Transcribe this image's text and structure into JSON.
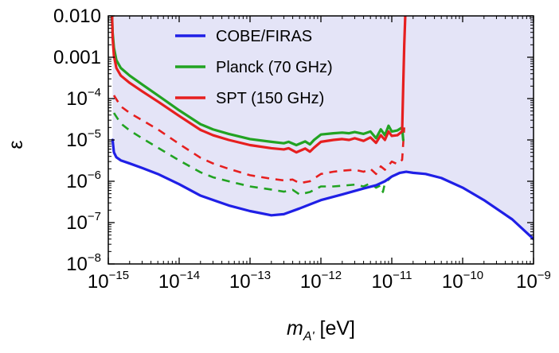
{
  "chart_data": {
    "type": "line",
    "title": "",
    "xlabel": {
      "symbol": "m",
      "subscript": "A'",
      "unit": "[eV]"
    },
    "ylabel": "ε",
    "x_scale": "log",
    "y_scale": "log",
    "xlim": [
      1e-15,
      1e-09
    ],
    "ylim": [
      1e-08,
      0.01
    ],
    "x_ticks": [
      {
        "base": "10",
        "exp": "−15",
        "value": 1e-15
      },
      {
        "base": "10",
        "exp": "−14",
        "value": 1e-14
      },
      {
        "base": "10",
        "exp": "−13",
        "value": 1e-13
      },
      {
        "base": "10",
        "exp": "−12",
        "value": 1e-12
      },
      {
        "base": "10",
        "exp": "−11",
        "value": 1e-11
      },
      {
        "base": "10",
        "exp": "−10",
        "value": 1e-10
      },
      {
        "base": "10",
        "exp": "−9",
        "value": 1e-09
      }
    ],
    "y_ticks": [
      {
        "text": "0.010",
        "base": "",
        "exp": "",
        "value": 0.01
      },
      {
        "text": "0.001",
        "base": "",
        "exp": "",
        "value": 0.001
      },
      {
        "text": "",
        "base": "10",
        "exp": "−4",
        "value": 0.0001
      },
      {
        "text": "",
        "base": "10",
        "exp": "−5",
        "value": 1e-05
      },
      {
        "text": "",
        "base": "10",
        "exp": "−6",
        "value": 1e-06
      },
      {
        "text": "",
        "base": "10",
        "exp": "−7",
        "value": 1e-07
      },
      {
        "text": "",
        "base": "10",
        "exp": "−8",
        "value": 1e-08
      }
    ],
    "legend_position": "top-center",
    "excluded_region_color": "#e4e4f7",
    "series": [
      {
        "name": "COBE/FIRAS",
        "color": "#1f1fe6",
        "style": "solid",
        "x": [
          1.15e-15,
          1.2e-15,
          1.3e-15,
          1.5e-15,
          2e-15,
          3e-15,
          5e-15,
          1e-14,
          2e-14,
          5e-14,
          1e-13,
          2e-13,
          3e-13,
          5e-13,
          1e-12,
          2e-12,
          4e-12,
          6e-12,
          8e-12,
          1e-11,
          1.3e-11,
          1.6e-11,
          2e-11,
          3e-11,
          5e-11,
          1e-10,
          2e-10,
          5e-10,
          1e-09
        ],
        "y": [
          1e-05,
          5e-06,
          3.8e-06,
          3.2e-06,
          2.7e-06,
          2.1e-06,
          1.5e-06,
          8.5e-07,
          4.5e-07,
          2.6e-07,
          1.9e-07,
          1.5e-07,
          1.6e-07,
          2.2e-07,
          3.5e-07,
          4.8e-07,
          6.7e-07,
          8e-07,
          1e-06,
          1.3e-06,
          1.6e-06,
          1.7e-06,
          1.6e-06,
          1.5e-06,
          1.2e-06,
          7e-07,
          3.5e-07,
          1.2e-07,
          4e-08
        ]
      },
      {
        "name": "Planck (70 GHz)",
        "color": "#22a322",
        "style": "solid",
        "x": [
          1.13e-15,
          1.15e-15,
          1.2e-15,
          1.3e-15,
          1.5e-15,
          2e-15,
          3e-15,
          5e-15,
          1e-14,
          2e-14,
          3e-14,
          5e-14,
          1e-13,
          2e-13,
          3e-13,
          3.5e-13,
          4.5e-13,
          6e-13,
          7e-13,
          8e-13,
          1e-12,
          1.5e-12,
          2e-12,
          2.5e-12,
          3e-12,
          4e-12,
          5e-12,
          6e-12,
          7e-12,
          8e-12,
          9e-12,
          1e-11,
          1.2e-11,
          1.4e-11,
          1.45e-11
        ],
        "y": [
          0.01,
          0.004,
          0.0017,
          0.00085,
          0.00055,
          0.00036,
          0.00022,
          0.00012,
          5.2e-05,
          2.4e-05,
          1.8e-05,
          1.4e-05,
          1.05e-05,
          9e-06,
          8.3e-06,
          9e-06,
          7.5e-06,
          9.2e-06,
          7.8e-06,
          1e-05,
          1.35e-05,
          1.45e-05,
          1.5e-05,
          1.45e-05,
          1.55e-05,
          1.4e-05,
          1.6e-05,
          1.1e-05,
          1.8e-05,
          1.3e-05,
          2.2e-05,
          1.6e-05,
          1.7e-05,
          2e-05,
          1e-05
        ]
      },
      {
        "name": "SPT (150 GHz)",
        "color": "#e61f1f",
        "style": "solid",
        "x": [
          1.13e-15,
          1.15e-15,
          1.2e-15,
          1.3e-15,
          1.5e-15,
          2e-15,
          3e-15,
          5e-15,
          1e-14,
          2e-14,
          3e-14,
          5e-14,
          1e-13,
          2e-13,
          3e-13,
          3.5e-13,
          4.5e-13,
          6e-13,
          7e-13,
          8e-13,
          1e-12,
          1.5e-12,
          2e-12,
          2.5e-12,
          3e-12,
          4e-12,
          5e-12,
          6e-12,
          7e-12,
          8e-12,
          9e-12,
          1e-11,
          1.2e-11,
          1.4e-11,
          1.45e-11,
          1.5e-11,
          1.55e-11
        ],
        "y": [
          0.01,
          0.003,
          0.0011,
          0.00055,
          0.00036,
          0.00024,
          0.00015,
          8.5e-05,
          3.8e-05,
          1.75e-05,
          1.3e-05,
          1e-05,
          7.5e-06,
          6.3e-06,
          5.9e-06,
          6.3e-06,
          5e-06,
          6.2e-06,
          5.2e-06,
          6.5e-06,
          9e-06,
          1e-05,
          1.05e-05,
          1e-05,
          1.1e-05,
          9.5e-06,
          1.15e-05,
          8.5e-06,
          1.3e-05,
          1e-05,
          1.6e-05,
          1.25e-05,
          1.3e-05,
          1.6e-05,
          0.0002,
          0.002,
          0.01
        ]
      },
      {
        "name": "",
        "color": "#e61f1f",
        "style": "dashed",
        "x": [
          1.2e-15,
          1.5e-15,
          2e-15,
          3e-15,
          5e-15,
          1e-14,
          2e-14,
          3e-14,
          5e-14,
          1e-13,
          2e-13,
          3e-13,
          4e-13,
          5e-13,
          7e-13,
          1e-12,
          1.5e-12,
          2e-12,
          3e-12,
          4e-12,
          5e-12,
          6e-12,
          7e-12,
          8e-12,
          1e-11,
          1.2e-11,
          1.4e-11,
          1.5e-11
        ],
        "y": [
          0.00012,
          6.5e-05,
          4.5e-05,
          3e-05,
          1.8e-05,
          8e-06,
          3.7e-06,
          2.7e-06,
          2e-06,
          1.4e-06,
          1.15e-06,
          1.05e-06,
          1.1e-06,
          9e-07,
          1e-06,
          1.5e-06,
          1.7e-06,
          1.8e-06,
          1.9e-06,
          1.7e-06,
          2e-06,
          1.5e-06,
          2.3e-06,
          1.9e-06,
          3e-06,
          2.6e-06,
          3.3e-06,
          2e-05
        ]
      },
      {
        "name": "",
        "color": "#22a322",
        "style": "dashed",
        "x": [
          1.2e-15,
          1.5e-15,
          2e-15,
          3e-15,
          5e-15,
          1e-14,
          2e-14,
          3e-14,
          5e-14,
          1e-13,
          2e-13,
          3e-13,
          4e-13,
          5e-13,
          7e-13,
          1e-12,
          1.5e-12,
          2e-12,
          3e-12,
          4e-12,
          5e-12,
          6e-12,
          7e-12,
          7.5e-12,
          8e-12,
          1e-11,
          1.2e-11
        ],
        "y": [
          4.5e-05,
          2.5e-05,
          1.7e-05,
          1.1e-05,
          6.5e-06,
          3.2e-06,
          1.65e-06,
          1.25e-06,
          1e-06,
          7.5e-07,
          6.3e-07,
          5.6e-07,
          6.2e-07,
          4.8e-07,
          5.5e-07,
          7.5e-07,
          7.5e-07,
          7.8e-07,
          8.3e-07,
          7.5e-07,
          9e-07,
          7e-07,
          8e-07,
          5.5e-07,
          9e-07,
          1.3e-06,
          1.6e-06
        ]
      }
    ]
  }
}
